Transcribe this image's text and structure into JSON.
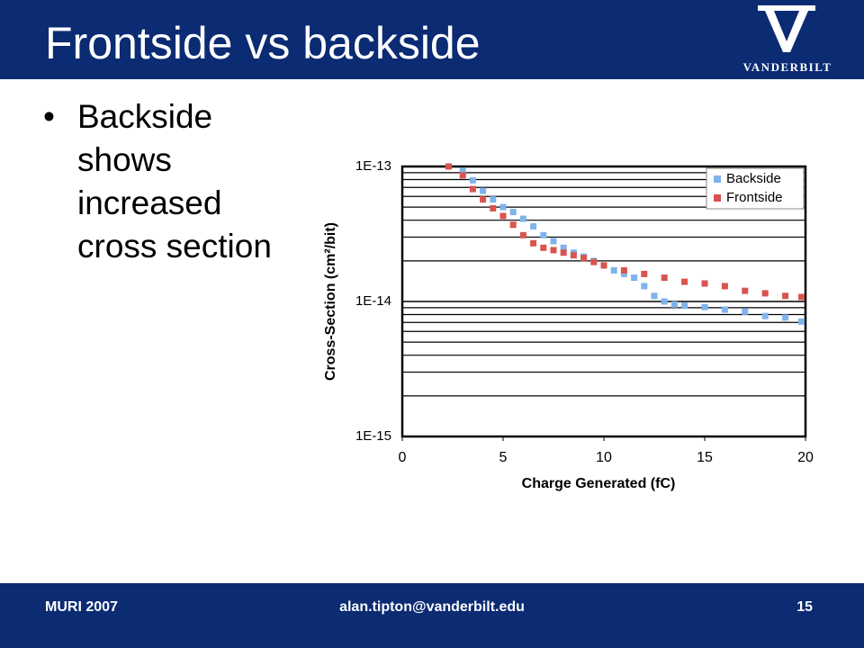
{
  "header": {
    "title": "Frontside vs backside",
    "logo_text": "VANDERBILT"
  },
  "bullets": [
    "Backside shows increased cross section"
  ],
  "footer": {
    "left": "MURI 2007",
    "center": "alan.tipton@vanderbilt.edu",
    "right": "15"
  },
  "chart_data": {
    "type": "scatter",
    "x_label": "Charge Generated (fC)",
    "y_label": "Cross-Section (cm²/bit)",
    "xlim": [
      0,
      20
    ],
    "xticks": [
      0,
      5,
      10,
      15,
      20
    ],
    "ylim": [
      1e-15,
      1e-13
    ],
    "yticks": [
      {
        "value": 1e-15,
        "label": "1E-15"
      },
      {
        "value": 1e-14,
        "label": "1E-14"
      },
      {
        "value": 1e-13,
        "label": "1E-13"
      }
    ],
    "log_y": true,
    "grid": true,
    "minor_grid": true,
    "legend": "top-right",
    "series": [
      {
        "name": "Backside",
        "color": "#7fb3ec",
        "x": [
          2.3,
          3,
          3.5,
          4,
          4.5,
          5,
          5.5,
          6,
          6.5,
          7,
          7.5,
          8,
          8.5,
          9,
          9.5,
          10,
          10.5,
          11,
          11.5,
          12,
          12.5,
          13,
          13.5,
          14,
          15,
          16,
          17,
          18,
          19,
          19.8
        ],
        "values": [
          1e-13,
          9.3e-14,
          7.9e-14,
          6.6e-14,
          5.7e-14,
          5e-14,
          4.6e-14,
          4.1e-14,
          3.6e-14,
          3.1e-14,
          2.8e-14,
          2.5e-14,
          2.3e-14,
          2.15e-14,
          2e-14,
          1.85e-14,
          1.7e-14,
          1.6e-14,
          1.5e-14,
          1.3e-14,
          1.1e-14,
          1e-14,
          9.5e-15,
          9.3e-15,
          9.1e-15,
          8.7e-15,
          8.4e-15,
          7.8e-15,
          7.6e-15,
          7.1e-15
        ]
      },
      {
        "name": "Frontside",
        "color": "#d9534f",
        "x": [
          2.3,
          3,
          3.5,
          4,
          4.5,
          5,
          5.5,
          6,
          6.5,
          7,
          7.5,
          8,
          8.5,
          9,
          9.5,
          10,
          11,
          12,
          13,
          14,
          15,
          16,
          17,
          18,
          19,
          19.8
        ],
        "values": [
          1e-13,
          8.6e-14,
          6.8e-14,
          5.7e-14,
          4.9e-14,
          4.3e-14,
          3.7e-14,
          3.1e-14,
          2.7e-14,
          2.5e-14,
          2.4e-14,
          2.3e-14,
          2.2e-14,
          2.1e-14,
          1.96e-14,
          1.85e-14,
          1.7e-14,
          1.6e-14,
          1.5e-14,
          1.4e-14,
          1.36e-14,
          1.3e-14,
          1.2e-14,
          1.15e-14,
          1.1e-14,
          1.08e-14
        ]
      }
    ]
  }
}
